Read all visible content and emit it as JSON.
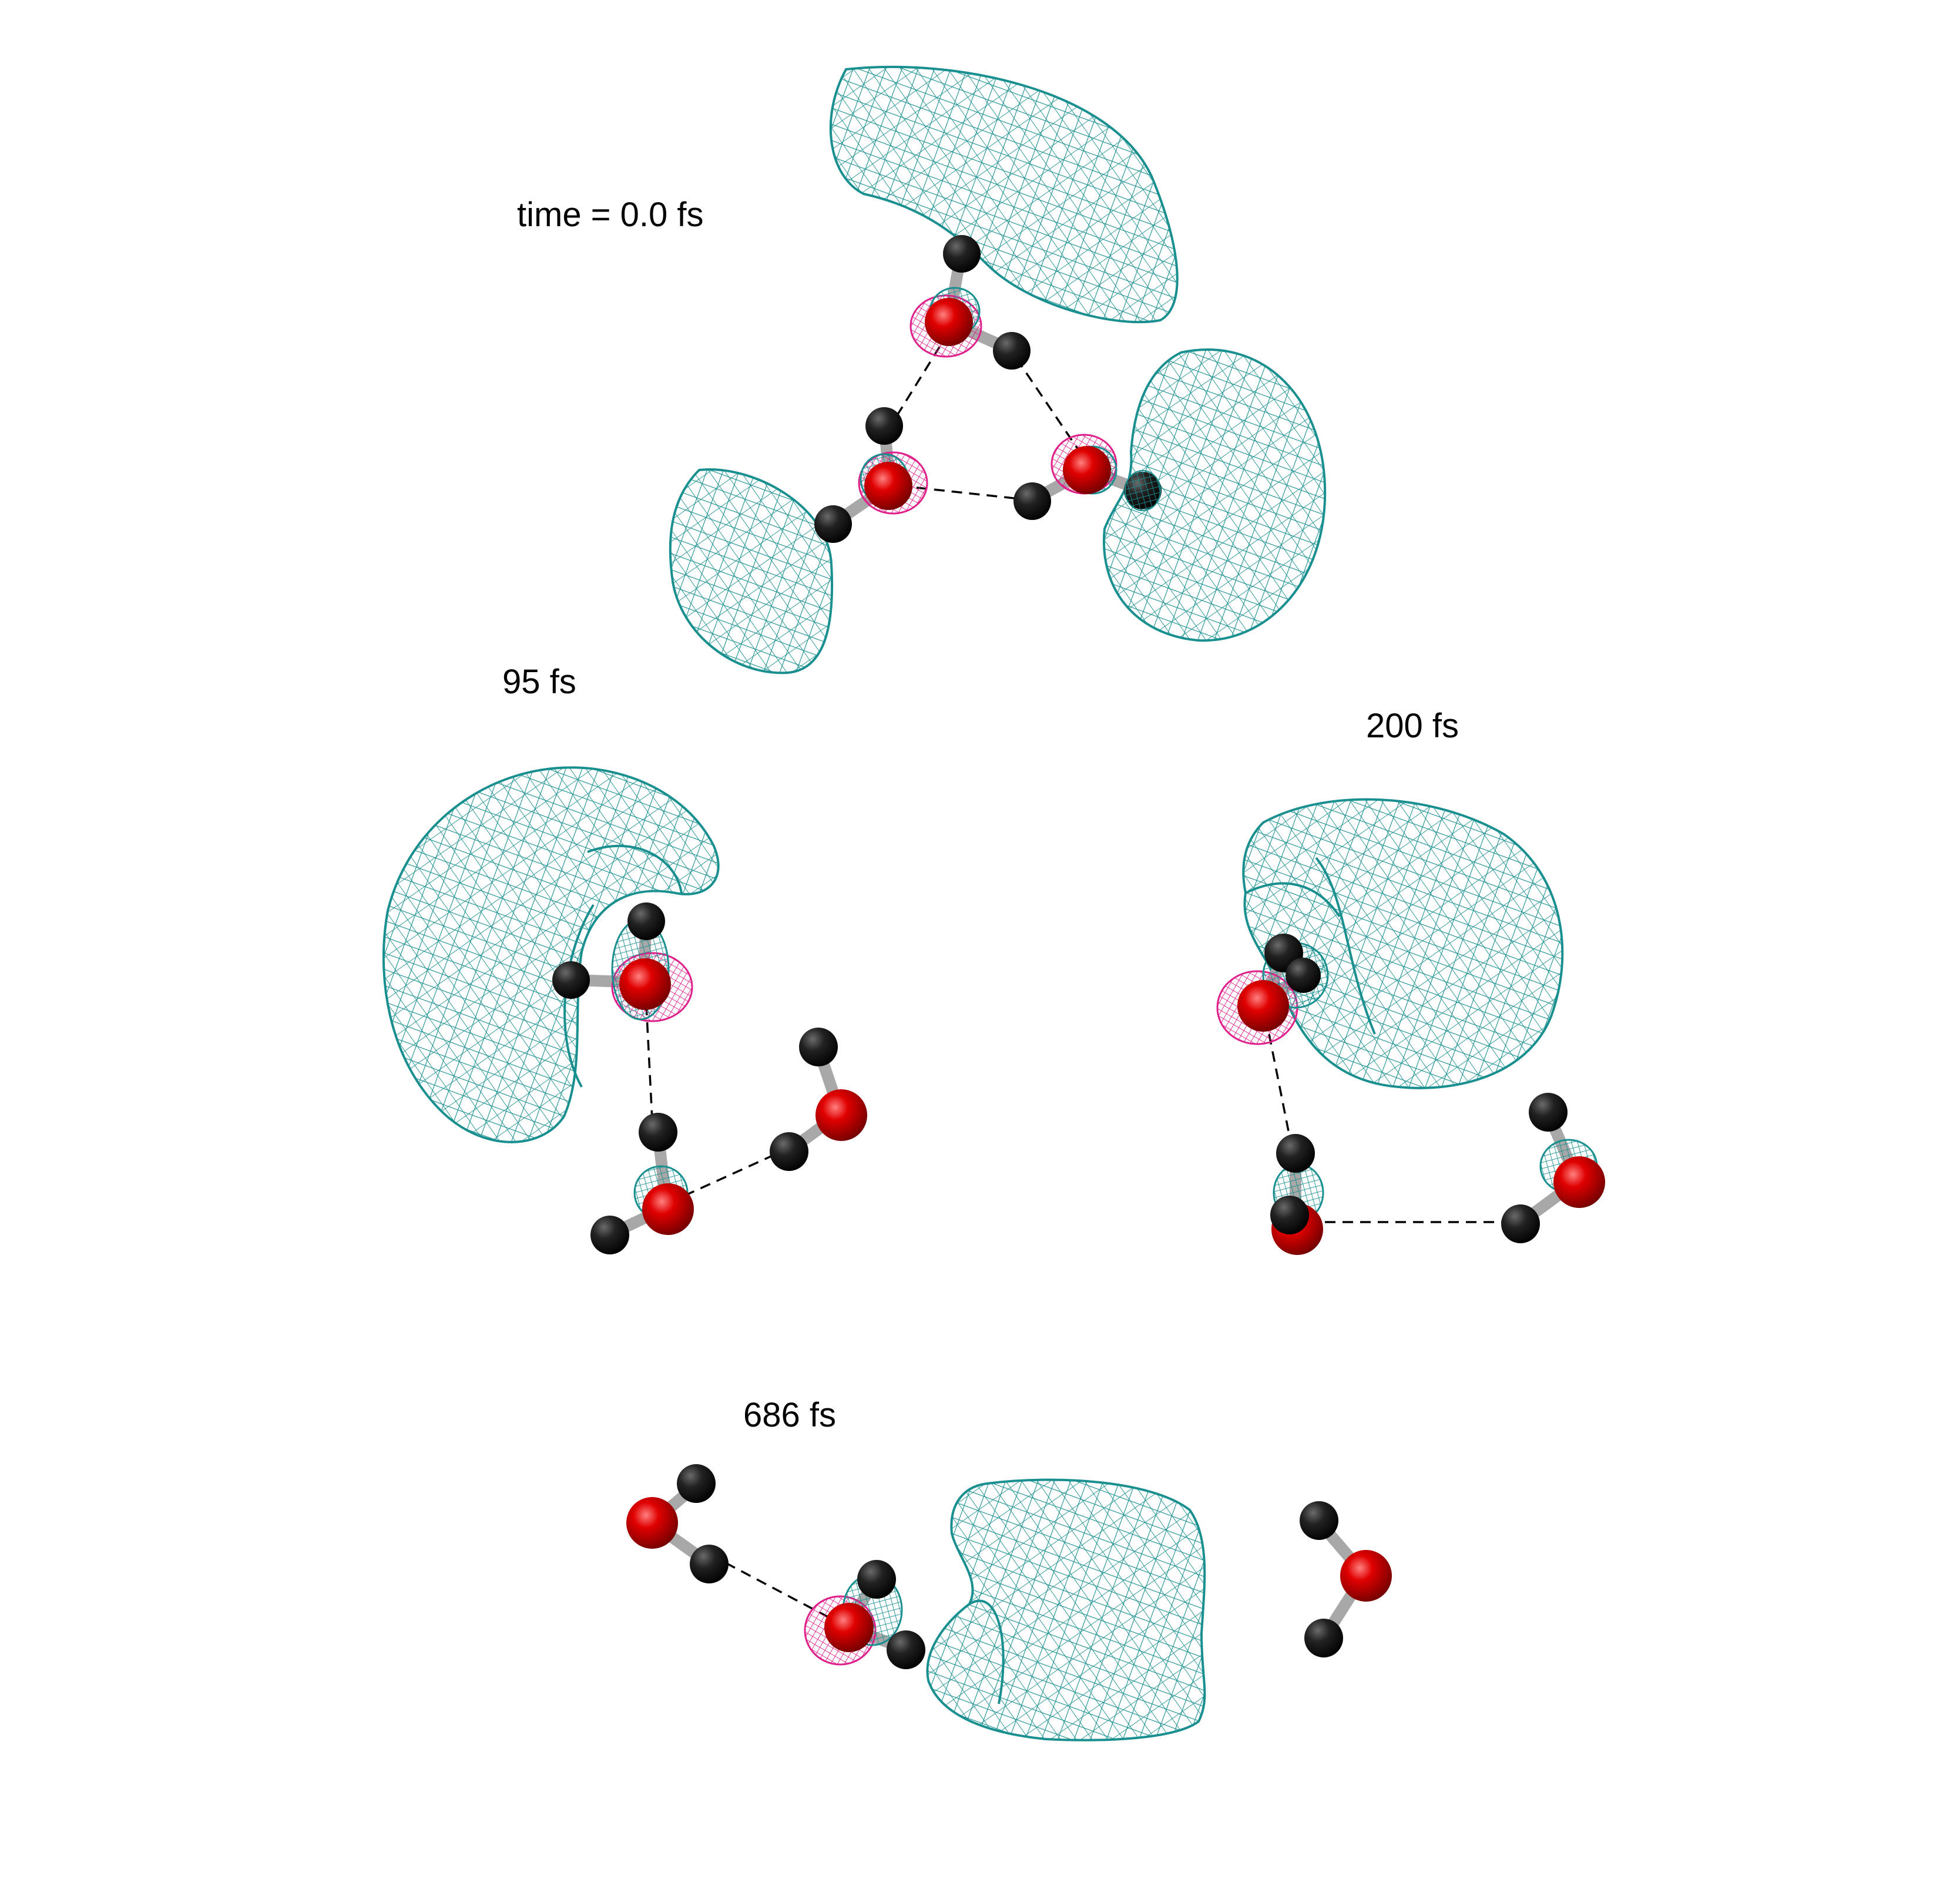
{
  "snapshots": [
    {
      "id": "t0",
      "label": "time = 0.0 fs"
    },
    {
      "id": "t95",
      "label": "95 fs"
    },
    {
      "id": "t200",
      "label": "200 fs"
    },
    {
      "id": "t686",
      "label": "686 fs"
    }
  ],
  "colors": {
    "orbital_mesh": "#1a8f8f",
    "node_mesh": "#e0208a",
    "oxygen": "#d40000",
    "hydrogen": "#1c1c1c",
    "bond": "#a8a8a8",
    "hbond": "#000000",
    "background": "#ffffff"
  }
}
